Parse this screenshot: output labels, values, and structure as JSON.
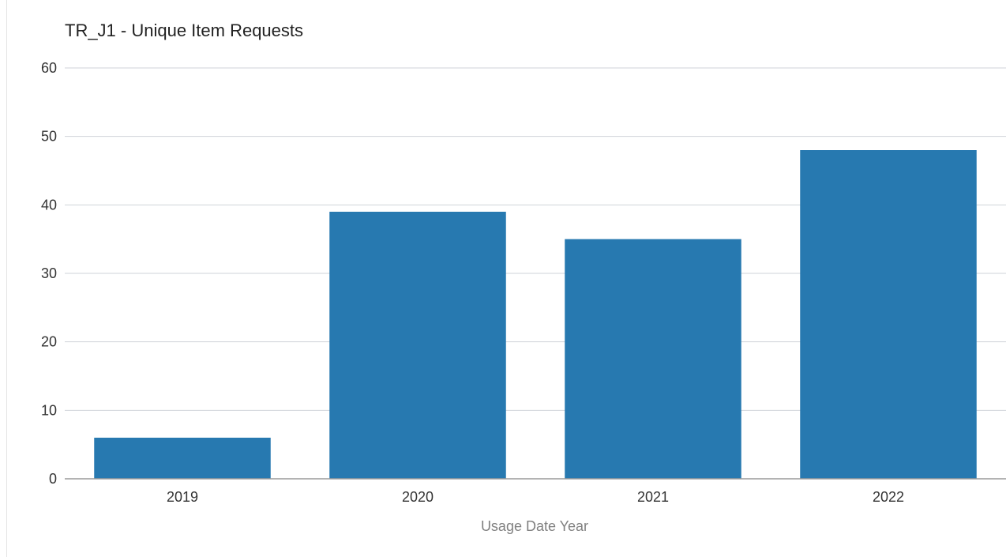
{
  "chart_data": {
    "type": "bar",
    "title": "TR_J1 - Unique Item Requests",
    "xlabel": "Usage Date Year",
    "ylabel": "",
    "categories": [
      "2019",
      "2020",
      "2021",
      "2022"
    ],
    "series": [
      {
        "values": [
          6,
          39,
          35,
          48
        ]
      }
    ],
    "ylim": [
      0,
      60
    ],
    "yticks": [
      0,
      10,
      20,
      30,
      40,
      50,
      60
    ],
    "grid": true,
    "legend": "none"
  },
  "colors": {
    "bar": "#2779b0",
    "grid": "#cfd3d8",
    "axis": "#9a9a9a",
    "tick_text": "#333333",
    "title_text": "#222222",
    "xlabel_text": "#808080"
  }
}
